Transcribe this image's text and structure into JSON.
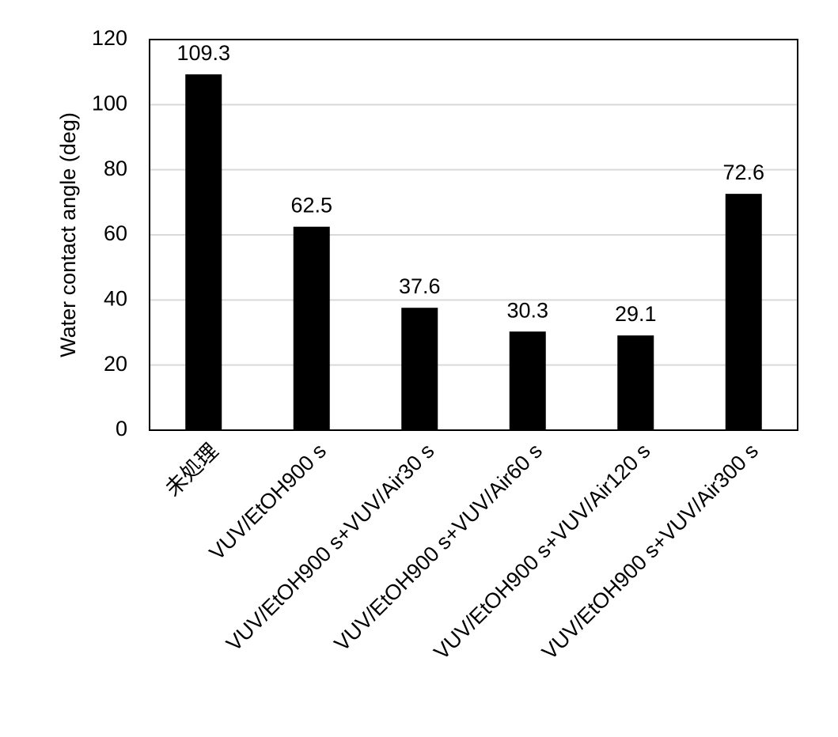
{
  "chart_data": {
    "type": "bar",
    "y_label": "Water contact angle (deg)",
    "categories": [
      "未処理",
      "VUV/EtOH900 s",
      "VUV/EtOH900 s+VUV/Air30 s",
      "VUV/EtOH900 s+VUV/Air60 s",
      "VUV/EtOH900 s+VUV/Air120 s",
      "VUV/EtOH900 s+VUV/Air300 s"
    ],
    "values": [
      109.3,
      62.5,
      37.6,
      30.3,
      29.1,
      72.6
    ],
    "color": "#000000",
    "ylim": [
      0,
      120
    ],
    "yticks": [
      0,
      20,
      40,
      60,
      80,
      100,
      120
    ],
    "grid": true
  }
}
